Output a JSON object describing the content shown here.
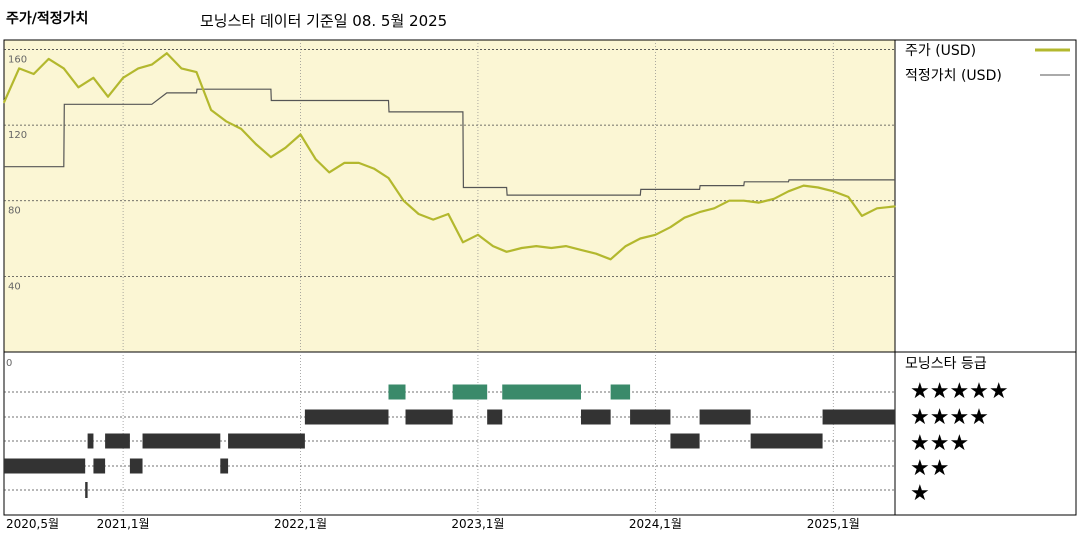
{
  "header": {
    "title": "주가/적정가치",
    "subtitle": "모닝스타 데이터 기준일 08. 5월 2025"
  },
  "colors": {
    "price_line": "#b3b82e",
    "fair_value_line": "#555555",
    "upper_panel_bg": "#fbf6d4",
    "rating_5_bar": "#3a8a6a",
    "rating_bar": "#333333"
  },
  "chart_data": [
    {
      "type": "line",
      "title": "주가/적정가치",
      "y_ticks": [
        40,
        80,
        120,
        160
      ],
      "ylim": [
        0,
        165
      ],
      "xlim": [
        "2020-05-01",
        "2025-05-08"
      ],
      "grid": true,
      "legend_position": "right",
      "series": [
        {
          "name": "주가 (USD)",
          "x": [
            "2020-05-01",
            "2020-06-01",
            "2020-07-01",
            "2020-08-01",
            "2020-09-01",
            "2020-10-01",
            "2020-11-01",
            "2020-12-01",
            "2021-01-01",
            "2021-02-01",
            "2021-03-01",
            "2021-04-01",
            "2021-05-01",
            "2021-06-01",
            "2021-07-01",
            "2021-08-01",
            "2021-09-01",
            "2021-10-01",
            "2021-11-01",
            "2021-12-01",
            "2022-01-01",
            "2022-02-01",
            "2022-03-01",
            "2022-04-01",
            "2022-05-01",
            "2022-06-01",
            "2022-07-01",
            "2022-08-01",
            "2022-09-01",
            "2022-10-01",
            "2022-11-01",
            "2022-12-01",
            "2023-01-01",
            "2023-02-01",
            "2023-03-01",
            "2023-04-01",
            "2023-05-01",
            "2023-06-01",
            "2023-07-01",
            "2023-08-01",
            "2023-09-01",
            "2023-10-01",
            "2023-11-01",
            "2023-12-01",
            "2024-01-01",
            "2024-02-01",
            "2024-03-01",
            "2024-04-01",
            "2024-05-01",
            "2024-06-01",
            "2024-07-01",
            "2024-08-01",
            "2024-09-01",
            "2024-10-01",
            "2024-11-01",
            "2024-12-01",
            "2025-01-01",
            "2025-02-01",
            "2025-03-01",
            "2025-04-01",
            "2025-05-08"
          ],
          "values": [
            132,
            150,
            147,
            155,
            150,
            140,
            145,
            135,
            145,
            150,
            152,
            158,
            150,
            148,
            128,
            122,
            118,
            110,
            103,
            108,
            115,
            102,
            95,
            100,
            100,
            97,
            92,
            80,
            73,
            70,
            73,
            58,
            62,
            56,
            53,
            55,
            56,
            55,
            56,
            54,
            52,
            49,
            56,
            60,
            62,
            66,
            71,
            74,
            76,
            80,
            80,
            79,
            81,
            85,
            88,
            87,
            85,
            82,
            72,
            76,
            77
          ],
          "color": "#b3b82e"
        },
        {
          "name": "적정가치 (USD)",
          "x": [
            "2020-05-01",
            "2020-09-01",
            "2020-09-02",
            "2021-03-01",
            "2021-04-01",
            "2021-06-01",
            "2021-06-02",
            "2021-11-01",
            "2021-11-02",
            "2022-07-01",
            "2022-07-02",
            "2022-12-01",
            "2022-12-02",
            "2023-03-01",
            "2023-03-02",
            "2023-09-01",
            "2023-09-02",
            "2023-12-01",
            "2023-12-02",
            "2024-04-01",
            "2024-04-02",
            "2024-07-01",
            "2024-07-02",
            "2024-10-01",
            "2024-10-02",
            "2025-01-01",
            "2025-01-02",
            "2025-05-08"
          ],
          "values": [
            98,
            98,
            131,
            131,
            137,
            137,
            139,
            139,
            133,
            133,
            127,
            127,
            87,
            87,
            83,
            83,
            83,
            83,
            86,
            86,
            88,
            88,
            90,
            90,
            91,
            91,
            91,
            91
          ],
          "color": "#555555"
        }
      ]
    },
    {
      "type": "heatmap",
      "title": "모닝스타 등급",
      "rows": [
        "★★★★★",
        "★★★★",
        "★★★",
        "★★",
        "★"
      ],
      "xlim": [
        "2020-05-01",
        "2025-05-08"
      ],
      "segments": [
        {
          "rating": 2,
          "start": "2020-05-01",
          "end": "2020-10-15"
        },
        {
          "rating": 1,
          "start": "2020-10-15",
          "end": "2020-10-20"
        },
        {
          "rating": 3,
          "start": "2020-10-20",
          "end": "2020-11-01"
        },
        {
          "rating": 2,
          "start": "2020-11-01",
          "end": "2020-11-25"
        },
        {
          "rating": 3,
          "start": "2020-11-25",
          "end": "2021-01-15"
        },
        {
          "rating": 2,
          "start": "2021-01-15",
          "end": "2021-02-10"
        },
        {
          "rating": 3,
          "start": "2021-02-10",
          "end": "2021-07-20"
        },
        {
          "rating": 2,
          "start": "2021-07-20",
          "end": "2021-08-05"
        },
        {
          "rating": 3,
          "start": "2021-08-05",
          "end": "2022-01-10"
        },
        {
          "rating": 4,
          "start": "2022-01-10",
          "end": "2022-07-01"
        },
        {
          "rating": 5,
          "start": "2022-07-01",
          "end": "2022-08-05"
        },
        {
          "rating": 4,
          "start": "2022-08-05",
          "end": "2022-11-10"
        },
        {
          "rating": 5,
          "start": "2022-11-10",
          "end": "2023-01-20"
        },
        {
          "rating": 4,
          "start": "2023-01-20",
          "end": "2023-02-20"
        },
        {
          "rating": 5,
          "start": "2023-02-20",
          "end": "2023-08-01"
        },
        {
          "rating": 4,
          "start": "2023-08-01",
          "end": "2023-10-01"
        },
        {
          "rating": 5,
          "start": "2023-10-01",
          "end": "2023-11-10"
        },
        {
          "rating": 4,
          "start": "2023-11-10",
          "end": "2024-02-01"
        },
        {
          "rating": 3,
          "start": "2024-02-01",
          "end": "2024-04-01"
        },
        {
          "rating": 4,
          "start": "2024-04-01",
          "end": "2024-07-15"
        },
        {
          "rating": 3,
          "start": "2024-07-15",
          "end": "2024-12-10"
        },
        {
          "rating": 4,
          "start": "2024-12-10",
          "end": "2025-05-08"
        }
      ]
    }
  ],
  "x_axis": {
    "labels": [
      {
        "text": "2020,5월",
        "date": "2020-05-01"
      },
      {
        "text": "2021,1월",
        "date": "2021-01-01"
      },
      {
        "text": "2022,1월",
        "date": "2022-01-01"
      },
      {
        "text": "2023,1월",
        "date": "2023-01-01"
      },
      {
        "text": "2024,1월",
        "date": "2024-01-01"
      },
      {
        "text": "2025,1월",
        "date": "2025-01-01"
      }
    ]
  },
  "legend": {
    "price_label": "주가 (USD)",
    "fair_value_label": "적정가치 (USD)",
    "rating_title": "모닝스타 등급",
    "rating_zero": "0"
  }
}
